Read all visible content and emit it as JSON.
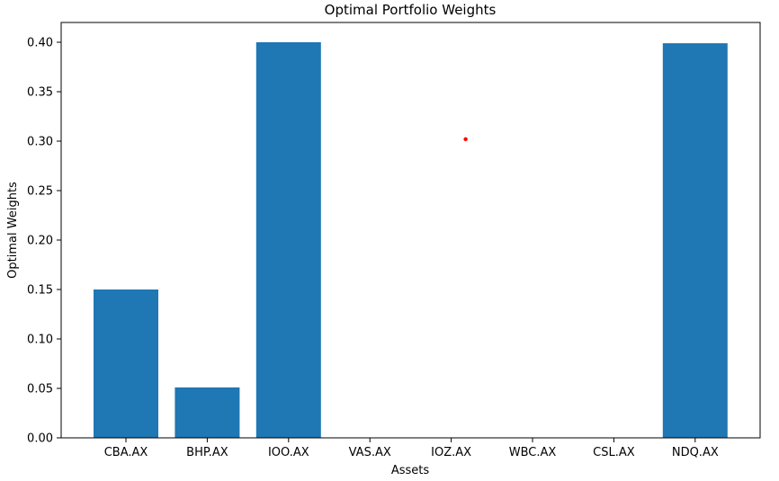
{
  "chart_data": {
    "type": "bar",
    "title": "Optimal Portfolio Weights",
    "xlabel": "Assets",
    "ylabel": "Optimal Weights",
    "categories": [
      "CBA.AX",
      "BHP.AX",
      "IOO.AX",
      "VAS.AX",
      "IOZ.AX",
      "WBC.AX",
      "CSL.AX",
      "NDQ.AX"
    ],
    "values": [
      0.15,
      0.051,
      0.4,
      0.0,
      0.0,
      0.0,
      0.0,
      0.399
    ],
    "ylim": [
      0,
      0.42
    ],
    "yticks": [
      0.0,
      0.05,
      0.1,
      0.15,
      0.2,
      0.25,
      0.3,
      0.35,
      0.4
    ],
    "ytick_labels": [
      "0.00",
      "0.05",
      "0.10",
      "0.15",
      "0.20",
      "0.25",
      "0.30",
      "0.35",
      "0.40"
    ],
    "grid": false,
    "bar_color": "#1f77b4",
    "marker": {
      "category_index": 4,
      "value": 0.302,
      "color": "#ff0000"
    }
  }
}
